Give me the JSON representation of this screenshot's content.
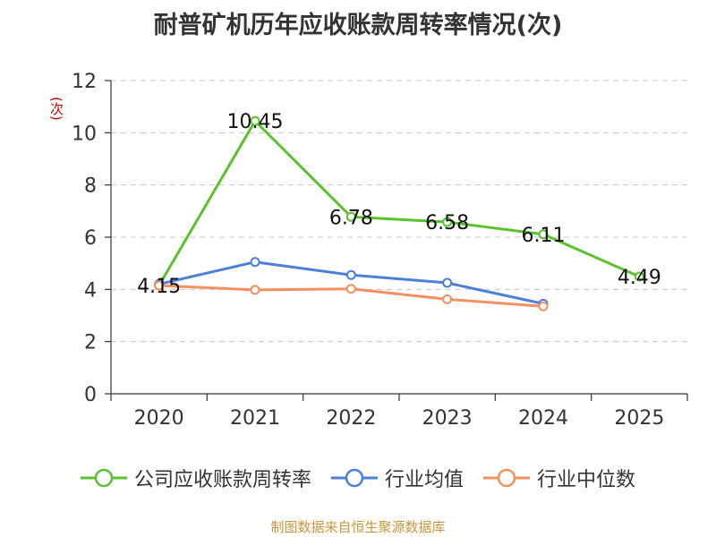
{
  "chart_data": {
    "type": "line",
    "title": "耐普矿机历年应收账款周转率情况(次)",
    "ylabel": "(次)",
    "xlabel": "",
    "categories": [
      "2020",
      "2021",
      "2022",
      "2023",
      "2024",
      "2025"
    ],
    "ylim": [
      0,
      12
    ],
    "yticks": [
      0,
      2,
      4,
      6,
      8,
      10,
      12
    ],
    "grid": true,
    "legend_position": "bottom",
    "series": [
      {
        "name": "公司应收账款周转率",
        "color": "#5cc12e",
        "values": [
          4.15,
          10.45,
          6.78,
          6.58,
          6.11,
          4.49
        ],
        "labels": [
          "4.15",
          "10.45",
          "6.78",
          "6.58",
          "6.11",
          "4.49"
        ]
      },
      {
        "name": "行业均值",
        "color": "#4b7fd8",
        "values": [
          4.2,
          5.05,
          4.55,
          4.25,
          3.45,
          null
        ]
      },
      {
        "name": "行业中位数",
        "color": "#f39060",
        "values": [
          4.15,
          3.98,
          4.02,
          3.62,
          3.35,
          null
        ]
      }
    ]
  },
  "source": "制图数据来自恒生聚源数据库"
}
